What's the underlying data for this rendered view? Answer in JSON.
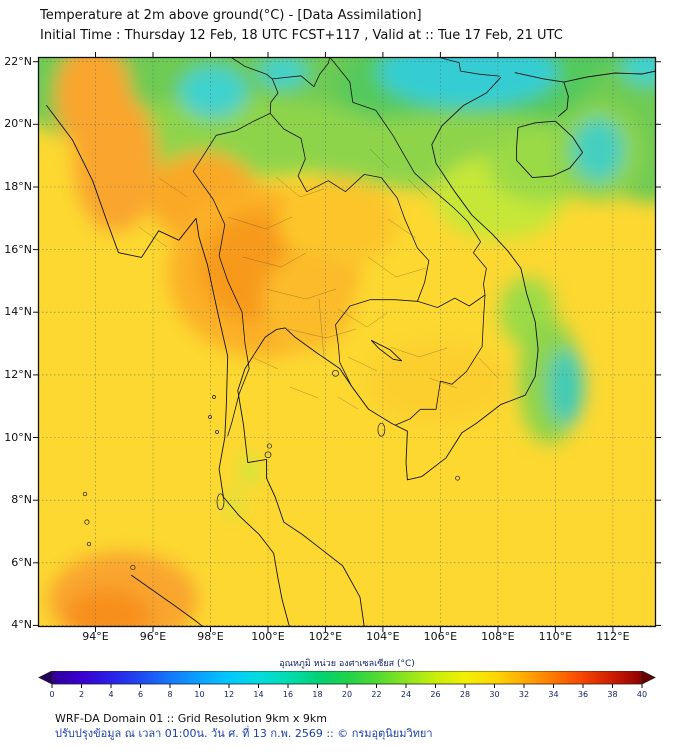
{
  "header": {
    "title": "Temperature at 2m above ground(°C) - [Data Assimilation]",
    "subtitle": "Initial Time : Thursday 12 Feb, 18 UTC FCST+117 , Valid at :: Tue 17 Feb, 21 UTC"
  },
  "axes": {
    "lat_ticks": [
      "22°N",
      "20°N",
      "18°N",
      "16°N",
      "14°N",
      "12°N",
      "10°N",
      "8°N",
      "6°N",
      "4°N"
    ],
    "lon_ticks": [
      "94°E",
      "96°E",
      "98°E",
      "100°E",
      "102°E",
      "104°E",
      "106°E",
      "108°E",
      "110°E",
      "112°E"
    ]
  },
  "colorbar": {
    "label": "อุณหภูมิ หน่วย องศาเซลเซียส (°C)",
    "tick_labels": [
      "0",
      "2",
      "4",
      "6",
      "8",
      "10",
      "12",
      "14",
      "16",
      "18",
      "20",
      "22",
      "24",
      "26",
      "28",
      "30",
      "32",
      "34",
      "36",
      "38",
      "40"
    ],
    "left_arrow_color": "#23005e",
    "right_arrow_color": "#6b0000",
    "gradient_stops": [
      {
        "t": 0,
        "color": "#30009a"
      },
      {
        "t": 2,
        "color": "#3a00d0"
      },
      {
        "t": 4,
        "color": "#2a20e8"
      },
      {
        "t": 6,
        "color": "#1f49f2"
      },
      {
        "t": 8,
        "color": "#1478fa"
      },
      {
        "t": 10,
        "color": "#0aa2ff"
      },
      {
        "t": 12,
        "color": "#00c8ff"
      },
      {
        "t": 14,
        "color": "#00dcde"
      },
      {
        "t": 16,
        "color": "#00dcb0"
      },
      {
        "t": 18,
        "color": "#00d277"
      },
      {
        "t": 20,
        "color": "#1ed24b"
      },
      {
        "t": 22,
        "color": "#50da32"
      },
      {
        "t": 24,
        "color": "#8ce41e"
      },
      {
        "t": 26,
        "color": "#c8ee0a"
      },
      {
        "t": 28,
        "color": "#f0f000"
      },
      {
        "t": 30,
        "color": "#ffd800"
      },
      {
        "t": 32,
        "color": "#ffaa00"
      },
      {
        "t": 34,
        "color": "#ff7800"
      },
      {
        "t": 36,
        "color": "#f54400"
      },
      {
        "t": 38,
        "color": "#cc1c00"
      },
      {
        "t": 40,
        "color": "#8f0000"
      }
    ]
  },
  "footer": {
    "line1": "WRF-DA Domain 01 :: Grid Resolution 9km x 9km",
    "line2": "ปรับปรุงข้อมูล ณ เวลา 01:00น. วัน ศ. ที่ 13 ก.พ. 2569 :: © กรมอุตุนิยมวิทยา"
  },
  "chart_data": {
    "type": "heatmap",
    "title": "Temperature at 2m above ground (°C), WRF-DA Domain 01",
    "units": "°C",
    "value_range": [
      0,
      40
    ],
    "x_range_lon": [
      "94°E",
      "112°E"
    ],
    "y_range_lat": [
      "4°N",
      "22°N"
    ],
    "regions": [
      {
        "area": "far north band (N. Vietnam / N. Laos / S. China, 20–22°N)",
        "approx_temp_c": "22–26",
        "color": "green"
      },
      {
        "area": "cold pockets along 21–22°N and oval SE of Hainan",
        "approx_temp_c": "18–22",
        "color": "cyan"
      },
      {
        "area": "NW Thailand / E. Myanmar highlands",
        "approx_temp_c": "31–34",
        "color": "orange"
      },
      {
        "area": "W. Myanmar (Rakhine) coast and NW corner",
        "approx_temp_c": "31–33",
        "color": "orange"
      },
      {
        "area": "central Thailand plains",
        "approx_temp_c": "30–32",
        "color": "light orange"
      },
      {
        "area": "S. Vietnam coastal strip and offshore waters",
        "approx_temp_c": "22–26",
        "color": "green-cyan"
      },
      {
        "area": "N. Sumatra (bottom-left corner)",
        "approx_temp_c": "31–33",
        "color": "orange"
      },
      {
        "area": "remaining land and sea (Gulf of Thailand, Cambodia, Andaman Sea)",
        "approx_temp_c": "28–30",
        "color": "yellow"
      }
    ]
  }
}
